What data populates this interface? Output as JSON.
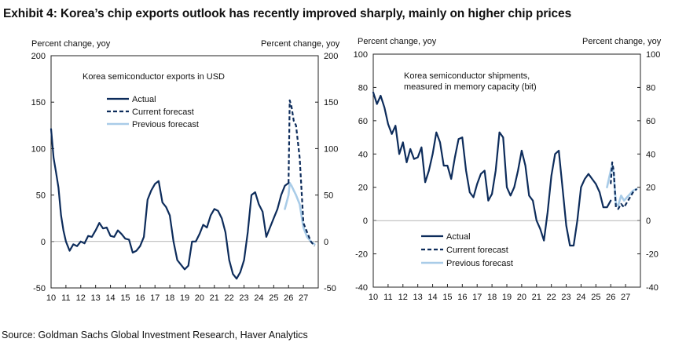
{
  "title": "Exhibit 4: Korea’s chip exports outlook has recently improved sharply, mainly on higher chip prices",
  "source": "Source: Goldman Sachs Global Investment Research, Haver Analytics",
  "colors": {
    "actual": "#0d2c5b",
    "current": "#0d2c5b",
    "previous": "#a9cce8"
  },
  "chart_data": [
    {
      "type": "line",
      "title": "Korea semiconductor exports in USD",
      "ylabel_left": "Percent change, yoy",
      "ylabel_right": "Percent change, yoy",
      "xlim": [
        10,
        28
      ],
      "ylim": [
        -50,
        200
      ],
      "x_ticks": [
        10,
        11,
        12,
        13,
        14,
        15,
        16,
        17,
        18,
        19,
        20,
        21,
        22,
        23,
        24,
        25,
        26,
        27
      ],
      "y_ticks_left": [
        200,
        150,
        100,
        50,
        0,
        -50
      ],
      "y_ticks_right": [
        200,
        150,
        100,
        50,
        0,
        -50
      ],
      "y_right_range": [
        -50,
        200
      ],
      "legend": [
        "Actual",
        "Current forecast",
        "Previous forecast"
      ],
      "series": [
        {
          "name": "Actual",
          "style": "solid",
          "x": [
            10.0,
            10.17,
            10.33,
            10.5,
            10.67,
            10.83,
            11.0,
            11.25,
            11.5,
            11.75,
            12.0,
            12.25,
            12.5,
            12.75,
            13.0,
            13.25,
            13.5,
            13.75,
            14.0,
            14.25,
            14.5,
            14.75,
            15.0,
            15.25,
            15.5,
            15.75,
            16.0,
            16.25,
            16.5,
            16.75,
            17.0,
            17.25,
            17.5,
            17.75,
            18.0,
            18.25,
            18.5,
            18.75,
            19.0,
            19.25,
            19.5,
            19.75,
            20.0,
            20.25,
            20.5,
            20.75,
            21.0,
            21.25,
            21.5,
            21.75,
            22.0,
            22.25,
            22.5,
            22.75,
            23.0,
            23.25,
            23.5,
            23.75,
            24.0,
            24.25,
            24.5,
            24.75,
            25.0,
            25.25,
            25.5,
            25.75,
            26.0
          ],
          "y": [
            121,
            90,
            75,
            58,
            28,
            12,
            0,
            -10,
            -3,
            -5,
            0,
            -2,
            6,
            5,
            12,
            20,
            14,
            15,
            6,
            5,
            12,
            8,
            3,
            2,
            -12,
            -10,
            -5,
            5,
            45,
            55,
            62,
            65,
            42,
            37,
            28,
            0,
            -20,
            -25,
            -30,
            -26,
            0,
            0,
            8,
            18,
            15,
            28,
            35,
            33,
            25,
            10,
            -20,
            -35,
            -40,
            -33,
            -20,
            10,
            50,
            53,
            40,
            32,
            5,
            15,
            25,
            35,
            50,
            60,
            63
          ]
        },
        {
          "name": "Current forecast",
          "style": "dashed",
          "x": [
            26.0,
            26.08,
            26.2,
            26.35,
            26.5,
            26.75,
            27.0,
            27.25,
            27.5,
            27.75
          ],
          "y": [
            63,
            152,
            145,
            130,
            125,
            90,
            20,
            10,
            0,
            -5
          ]
        },
        {
          "name": "Previous forecast",
          "style": "solid-light",
          "x": [
            25.75,
            26.0,
            26.08,
            26.2,
            26.35,
            26.5,
            26.75,
            27.0,
            27.25,
            27.5,
            27.75
          ],
          "y": [
            35,
            50,
            63,
            60,
            55,
            50,
            40,
            15,
            5,
            0,
            -3
          ]
        }
      ]
    },
    {
      "type": "line",
      "title": "Korea semiconductor shipments, measured in memory capacity (bit)",
      "title_lines": [
        "Korea semiconductor shipments,",
        "measured in memory capacity (bit)"
      ],
      "ylabel_left": "Percent change, yoy",
      "ylabel_right": "Percent change, yoy",
      "xlim": [
        10,
        28
      ],
      "ylim": [
        -40,
        100
      ],
      "x_ticks": [
        10,
        11,
        12,
        13,
        14,
        15,
        16,
        17,
        18,
        19,
        20,
        21,
        22,
        23,
        24,
        25,
        26,
        27
      ],
      "y_ticks_left": [
        100,
        80,
        60,
        40,
        20,
        0,
        -20,
        -40
      ],
      "y_ticks_right": [
        100,
        80,
        60,
        40,
        20,
        0,
        -20,
        -40
      ],
      "y_right_range": [
        -40,
        100
      ],
      "legend": [
        "Actual",
        "Current forecast",
        "Previous forecast"
      ],
      "series": [
        {
          "name": "Actual",
          "style": "solid",
          "x": [
            10.0,
            10.25,
            10.5,
            10.75,
            11.0,
            11.25,
            11.5,
            11.75,
            12.0,
            12.25,
            12.5,
            12.75,
            13.0,
            13.25,
            13.5,
            13.75,
            14.0,
            14.25,
            14.5,
            14.75,
            15.0,
            15.25,
            15.5,
            15.75,
            16.0,
            16.25,
            16.5,
            16.75,
            17.0,
            17.25,
            17.5,
            17.75,
            18.0,
            18.25,
            18.5,
            18.75,
            19.0,
            19.25,
            19.5,
            19.75,
            20.0,
            20.25,
            20.5,
            20.75,
            21.0,
            21.25,
            21.5,
            21.75,
            22.0,
            22.25,
            22.5,
            22.75,
            23.0,
            23.25,
            23.5,
            23.75,
            24.0,
            24.25,
            24.5,
            24.75,
            25.0,
            25.25,
            25.5,
            25.75,
            26.0
          ],
          "y": [
            77,
            70,
            75,
            68,
            58,
            52,
            57,
            40,
            47,
            35,
            43,
            37,
            38,
            44,
            23,
            30,
            40,
            53,
            47,
            33,
            33,
            25,
            38,
            49,
            50,
            30,
            17,
            14,
            22,
            28,
            30,
            12,
            16,
            30,
            53,
            50,
            20,
            15,
            20,
            30,
            42,
            33,
            15,
            12,
            0,
            -5,
            -12,
            5,
            27,
            40,
            42,
            20,
            -3,
            -15,
            -15,
            0,
            20,
            25,
            28,
            25,
            22,
            17,
            8,
            8,
            12
          ]
        },
        {
          "name": "Current forecast",
          "style": "dashed",
          "x": [
            26.0,
            26.1,
            26.2,
            26.35,
            26.5,
            26.7,
            26.9,
            27.1,
            27.3,
            27.5,
            27.75
          ],
          "y": [
            22,
            35,
            30,
            8,
            7,
            10,
            8,
            11,
            14,
            17,
            19
          ]
        },
        {
          "name": "Previous forecast",
          "style": "solid-light",
          "x": [
            25.75,
            26.0,
            26.1,
            26.2,
            26.35,
            26.5,
            26.7,
            26.9,
            27.1,
            27.3,
            27.5,
            27.75
          ],
          "y": [
            20,
            30,
            33,
            28,
            10,
            9,
            15,
            12,
            14,
            16,
            18,
            19
          ]
        }
      ]
    }
  ]
}
